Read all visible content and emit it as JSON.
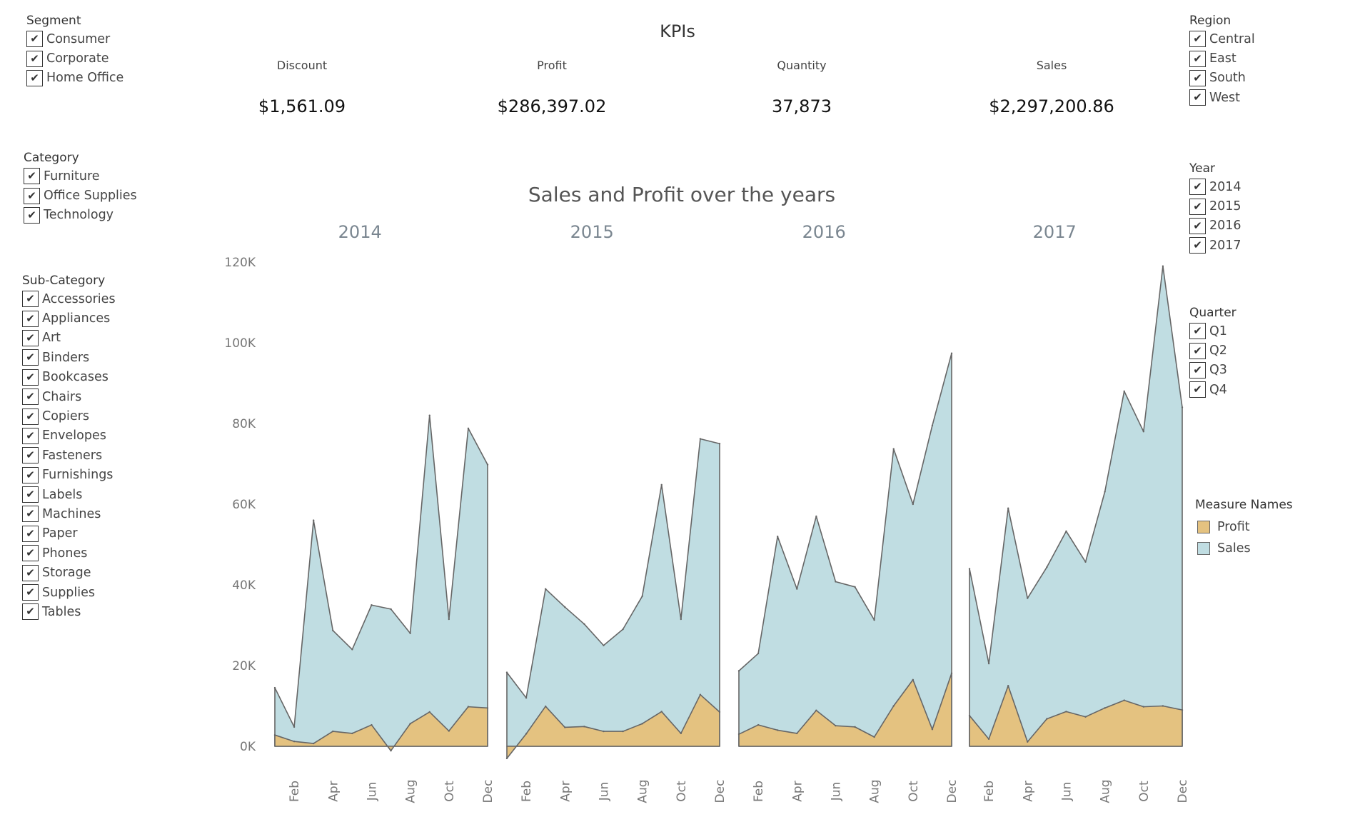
{
  "filters": {
    "segment": {
      "title": "Segment",
      "items": [
        "Consumer",
        "Corporate",
        "Home Office"
      ]
    },
    "category": {
      "title": "Category",
      "items": [
        "Furniture",
        "Office Supplies",
        "Technology"
      ]
    },
    "subcategory": {
      "title": "Sub-Category",
      "items": [
        "Accessories",
        "Appliances",
        "Art",
        "Binders",
        "Bookcases",
        "Chairs",
        "Copiers",
        "Envelopes",
        "Fasteners",
        "Furnishings",
        "Labels",
        "Machines",
        "Paper",
        "Phones",
        "Storage",
        "Supplies",
        "Tables"
      ]
    },
    "region": {
      "title": "Region",
      "items": [
        "Central",
        "East",
        "South",
        "West"
      ]
    },
    "year": {
      "title": "Year",
      "items": [
        "2014",
        "2015",
        "2016",
        "2017"
      ]
    },
    "quarter": {
      "title": "Quarter",
      "items": [
        "Q1",
        "Q2",
        "Q3",
        "Q4"
      ]
    },
    "checkmark": "✔"
  },
  "kpis": {
    "title": "KPIs",
    "items": [
      {
        "name": "Discount",
        "value": "$1,561.09"
      },
      {
        "name": "Profit",
        "value": "$286,397.02"
      },
      {
        "name": "Quantity",
        "value": "37,873"
      },
      {
        "name": "Sales",
        "value": "$2,297,200.86"
      }
    ]
  },
  "legend": {
    "title": "Measure Names",
    "items": [
      {
        "name": "Profit",
        "color": "#e4c280"
      },
      {
        "name": "Sales",
        "color": "#c0dde2"
      }
    ]
  },
  "chart_data": {
    "type": "area",
    "title": "Sales and Profit over the years",
    "ylim": [
      0,
      120000
    ],
    "yticks": [
      0,
      20000,
      40000,
      60000,
      80000,
      100000,
      120000
    ],
    "ytick_labels": [
      "0K",
      "20K",
      "40K",
      "60K",
      "80K",
      "100K",
      "120K"
    ],
    "months": [
      "Jan",
      "Feb",
      "Mar",
      "Apr",
      "May",
      "Jun",
      "Jul",
      "Aug",
      "Sep",
      "Oct",
      "Nov",
      "Dec"
    ],
    "xtick_labels": [
      "Feb",
      "Apr",
      "Jun",
      "Aug",
      "Oct",
      "Dec"
    ],
    "grid": false,
    "colors": {
      "sales": "#c0dde2",
      "profit": "#e4c280",
      "line": "#666666"
    },
    "panels": [
      {
        "year": "2014",
        "sales": [
          14500,
          4800,
          56000,
          28700,
          24000,
          35000,
          34000,
          28000,
          82000,
          31500,
          78800,
          69800
        ],
        "profit": [
          2800,
          1200,
          700,
          3700,
          3200,
          5300,
          -1100,
          5600,
          8500,
          3800,
          9800,
          9500
        ]
      },
      {
        "year": "2015",
        "sales": [
          18300,
          12000,
          39000,
          34500,
          30300,
          25000,
          29000,
          37200,
          64800,
          31500,
          76200,
          75000
        ],
        "profit": [
          -3000,
          3100,
          9900,
          4700,
          4900,
          3700,
          3700,
          5600,
          8600,
          3200,
          12800,
          8500
        ]
      },
      {
        "year": "2016",
        "sales": [
          18700,
          23000,
          52000,
          39000,
          57000,
          40800,
          39500,
          31300,
          73700,
          60000,
          79500,
          97400
        ],
        "profit": [
          3000,
          5300,
          4000,
          3200,
          8900,
          5100,
          4800,
          2300,
          10000,
          16500,
          4200,
          18100
        ]
      },
      {
        "year": "2017",
        "sales": [
          44000,
          20500,
          59000,
          36700,
          44400,
          53300,
          45700,
          63100,
          88000,
          78000,
          119000,
          84000
        ],
        "profit": [
          7600,
          1800,
          15000,
          1100,
          6800,
          8600,
          7300,
          9500,
          11400,
          9800,
          10000,
          9000
        ]
      }
    ]
  }
}
